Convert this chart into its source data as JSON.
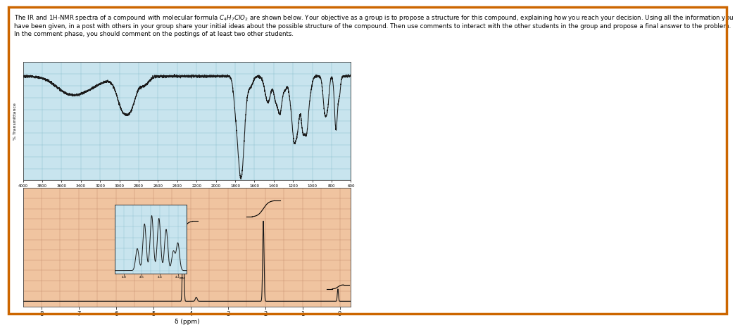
{
  "title_text": "The IR and 1H-NMR spectra of a compound with molecular formula C₄H₇ClO₂ are shown below. Your objective as a group is to propose a structure for this compound, explaining how you reach your decision. Using all the information you have been given, in a post with others in your group share your initial ideas about the possible structure of the compound. Then use comments to interact with the other students in the group and propose a final answer to the problem. In the comment phase, you should comment on the postings of at least two other students.",
  "ir_bg": "#c8e4ee",
  "ir_grid_color": "#8bbfce",
  "ir_line_color": "#1a1a1a",
  "nmr_bg": "#f0c4a0",
  "nmr_grid_color": "#c89070",
  "nmr_line_color": "#1a1a1a",
  "nmr_inset_bg": "#c8e4ee",
  "page_bg": "#ffffff",
  "border_color": "#cc6600",
  "ir_xticks": [
    4000,
    3800,
    3600,
    3400,
    3200,
    3000,
    2800,
    2600,
    2400,
    2200,
    2000,
    1800,
    1600,
    1400,
    1200,
    1000,
    800,
    600
  ],
  "nmr_xticks": [
    8,
    7,
    6,
    5,
    4,
    3,
    2,
    1,
    0
  ]
}
